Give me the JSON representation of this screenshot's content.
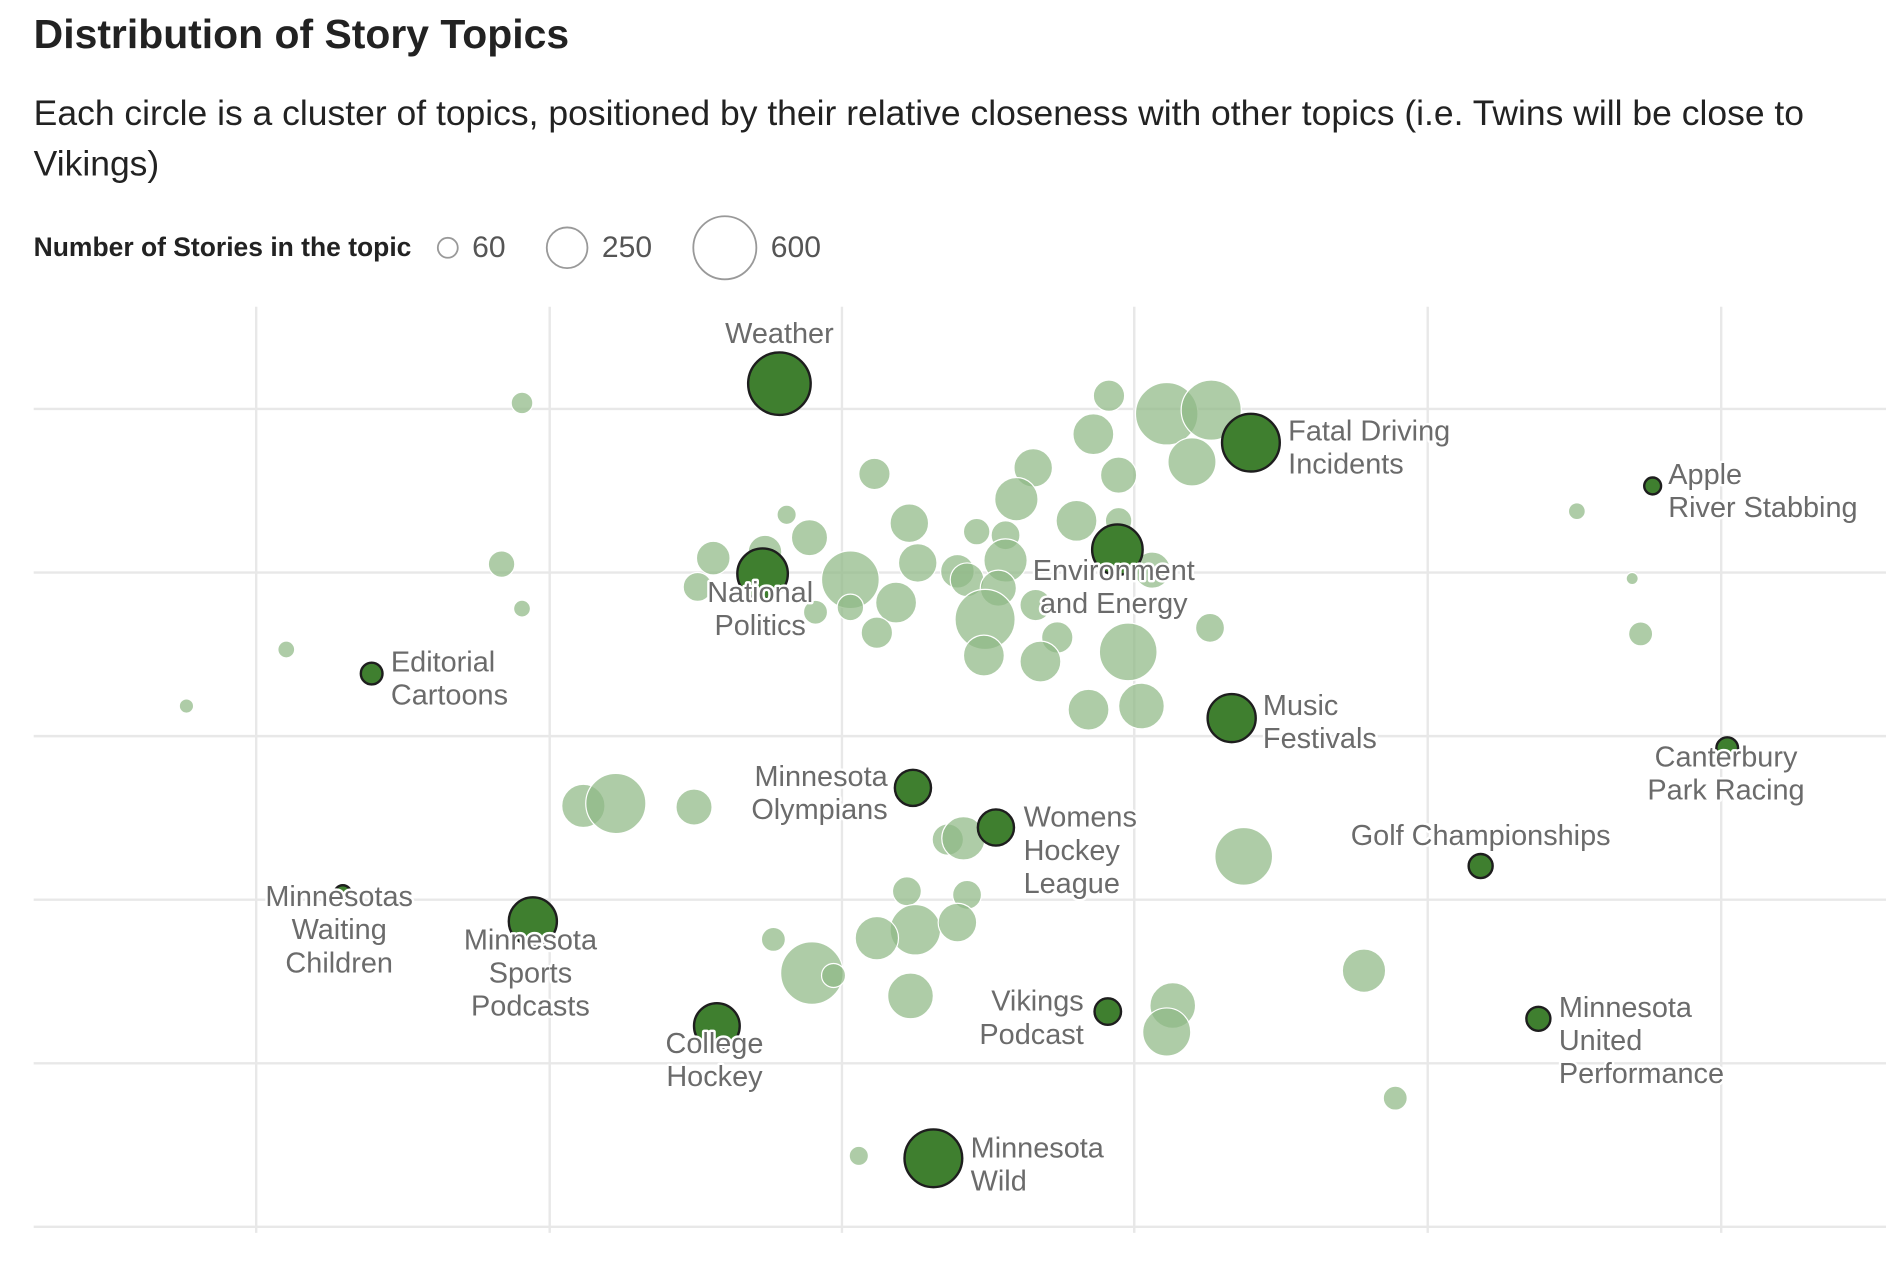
{
  "chart_data": {
    "type": "bubble",
    "title": "Distribution of Story Topics",
    "subtitle": "Each circle is a cluster of topics, positioned by their relative closeness with other topics (i.e. Twins will be close to Vikings)",
    "size_legend": {
      "title": "Number of Stories in the topic",
      "values": [
        60,
        250,
        600
      ]
    },
    "xlim": [
      28,
      1568
    ],
    "ylim": [
      1030,
      250
    ],
    "xticks": [
      213,
      457,
      700,
      943,
      1187,
      1431
    ],
    "yticks": [
      340,
      476,
      612,
      748,
      884,
      1020
    ],
    "grid": true,
    "highlight_color": "#3f7f2f",
    "background_color": "#8fb985",
    "highlighted": [
      {
        "label": [
          "Weather"
        ],
        "x": 648,
        "y": 319,
        "size": 590
      },
      {
        "label": [
          "Fatal Driving",
          "Incidents"
        ],
        "x": 1040,
        "y": 368,
        "size": 503
      },
      {
        "label": [
          "Apple",
          "River Stabbing"
        ],
        "x": 1374,
        "y": 404,
        "size": 43
      },
      {
        "label": [
          "Environment",
          "and Energy"
        ],
        "x": 929,
        "y": 457,
        "size": 385
      },
      {
        "label": [
          "National",
          "Politics"
        ],
        "x": 634,
        "y": 477,
        "size": 385
      },
      {
        "label": [
          "Editorial",
          "Cartoons"
        ],
        "x": 309,
        "y": 560,
        "size": 71
      },
      {
        "label": [
          "Music",
          "Festivals"
        ],
        "x": 1024,
        "y": 597,
        "size": 349
      },
      {
        "label": [
          "Canterbury",
          "Park Racing"
        ],
        "x": 1436,
        "y": 622,
        "size": 71
      },
      {
        "label": [
          "Minnesota",
          "Olympians"
        ],
        "x": 759,
        "y": 655,
        "size": 197
      },
      {
        "label": [
          "Womens",
          "Hockey",
          "League"
        ],
        "x": 828,
        "y": 688,
        "size": 197
      },
      {
        "label": [
          "Golf Championships"
        ],
        "x": 1231,
        "y": 720,
        "size": 87
      },
      {
        "label": [
          "Minnesotas",
          "Waiting",
          "Children"
        ],
        "x": 285,
        "y": 743,
        "size": 43
      },
      {
        "label": [
          "Minnesota",
          "Sports",
          "Podcasts"
        ],
        "x": 443,
        "y": 766,
        "size": 349
      },
      {
        "label": [
          "College",
          "Hockey"
        ],
        "x": 596,
        "y": 853,
        "size": 315
      },
      {
        "label": [
          "Vikings",
          "Podcast"
        ],
        "x": 921,
        "y": 841,
        "size": 106
      },
      {
        "label": [
          "Minnesota",
          "United",
          "Performance"
        ],
        "x": 1279,
        "y": 847,
        "size": 87
      },
      {
        "label": [
          "Minnesota",
          "Wild"
        ],
        "x": 776,
        "y": 963,
        "size": 503
      }
    ],
    "background": {
      "x": [
        434,
        417,
        434,
        238,
        155,
        922,
        970,
        1007,
        909,
        991,
        859,
        930,
        727,
        845,
        895,
        930,
        756,
        654,
        673,
        812,
        836,
        593,
        636,
        707,
        763,
        796,
        836,
        958,
        580,
        745,
        707,
        678,
        804,
        830,
        819,
        861,
        879,
        938,
        729,
        818,
        865,
        1006,
        905,
        949,
        1311,
        1357,
        1364,
        1022,
        485,
        512,
        577,
        788,
        801,
        754,
        804,
        761,
        729,
        796,
        643,
        675,
        693,
        757,
        975,
        970,
        1034,
        1134,
        1160,
        714
      ],
      "y": [
        335,
        469,
        506,
        540,
        587,
        329,
        344,
        341,
        361,
        384,
        389,
        395,
        394,
        415,
        433,
        433,
        435,
        428,
        447,
        442,
        445,
        464,
        459,
        482,
        468,
        475,
        466,
        474,
        488,
        501,
        505,
        509,
        482,
        489,
        515,
        503,
        530,
        542,
        526,
        545,
        550,
        522,
        590,
        587,
        425,
        481,
        527,
        591,
        670,
        668,
        671,
        698,
        697,
        741,
        744,
        773,
        780,
        767,
        781,
        809,
        811,
        828,
        836,
        858,
        712,
        807,
        913,
        961
      ],
      "size": [
        71,
        106,
        43,
        43,
        31,
        148,
        590,
        546,
        252,
        349,
        224,
        197,
        148,
        283,
        252,
        106,
        224,
        56,
        197,
        106,
        126,
        171,
        171,
        503,
        224,
        171,
        283,
        197,
        126,
        252,
        106,
        87,
        171,
        197,
        546,
        148,
        148,
        503,
        148,
        252,
        252,
        126,
        252,
        315,
        43,
        22,
        87,
        87,
        283,
        546,
        197,
        148,
        283,
        126,
        126,
        385,
        283,
        224,
        87,
        590,
        87,
        315,
        315,
        349,
        503,
        283,
        87,
        56
      ]
    }
  }
}
